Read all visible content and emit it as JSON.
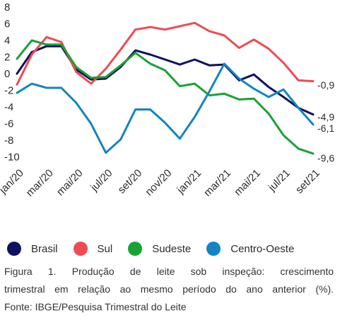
{
  "chart_data": {
    "type": "line",
    "categories": [
      "jan/20",
      "fev/20",
      "mar/20",
      "abr/20",
      "mai/20",
      "jun/20",
      "jul/20",
      "ago/20",
      "set/20",
      "out/20",
      "nov/20",
      "dez/20",
      "jan/21",
      "fev/21",
      "mar/21",
      "abr/21",
      "mai/21",
      "jun/21",
      "jul/21",
      "ago/21",
      "set/21"
    ],
    "x_tick_labels": [
      "jan/20",
      "mar/20",
      "mai/20",
      "jul/20",
      "set/20",
      "nov/20",
      "jan/21",
      "mar/21",
      "mai/21",
      "jul/21",
      "set/21"
    ],
    "y_ticks": [
      8,
      6,
      4,
      2,
      0,
      -2,
      -4,
      -6,
      -8,
      -10
    ],
    "y_tick_labels": [
      "8",
      "6",
      "4",
      "2",
      "0",
      "-2",
      "-4",
      "-6",
      "-8",
      "-10"
    ],
    "ylim": [
      -10.8,
      8.4
    ],
    "grid": false,
    "legend_position": "bottom",
    "series": [
      {
        "name": "Brasil",
        "color": "#0f1160",
        "values": [
          0.0,
          2.6,
          3.3,
          3.3,
          0.5,
          -0.7,
          -0.6,
          0.8,
          2.8,
          2.3,
          1.7,
          1.1,
          1.7,
          1.0,
          1.1,
          -0.8,
          -0.1,
          -1.6,
          -2.8,
          -4.1,
          -4.9
        ]
      },
      {
        "name": "Sul",
        "color": "#ee4b52",
        "values": [
          -1.3,
          2.3,
          4.4,
          3.8,
          0.2,
          -1.2,
          0.6,
          2.9,
          5.3,
          5.6,
          5.3,
          5.7,
          6.1,
          5.1,
          4.6,
          3.1,
          4.1,
          3.0,
          1.3,
          -0.8,
          -0.9
        ]
      },
      {
        "name": "Sudeste",
        "color": "#1aa136",
        "values": [
          1.8,
          4.0,
          3.5,
          3.5,
          0.8,
          -0.5,
          -0.4,
          1.0,
          2.5,
          1.2,
          0.4,
          -1.5,
          -1.2,
          -2.6,
          -2.4,
          -3.1,
          -3.0,
          -4.8,
          -7.4,
          -9.0,
          -9.6
        ]
      },
      {
        "name": "Centro-Oeste",
        "color": "#1384c5",
        "values": [
          -2.3,
          -1.2,
          -1.7,
          -1.7,
          -3.5,
          -6.0,
          -9.5,
          -7.9,
          -4.3,
          -4.3,
          -5.9,
          -7.8,
          -5.2,
          -2.1,
          1.2,
          -0.6,
          -1.8,
          -2.8,
          -1.9,
          -4.1,
          -6.1
        ]
      }
    ],
    "end_labels": [
      "-0,9",
      "-4,9",
      "-6,1",
      "-9,6"
    ]
  },
  "legend": [
    {
      "label": "Brasil",
      "color": "#0f1160"
    },
    {
      "label": "Sul",
      "color": "#ee4b52"
    },
    {
      "label": "Sudeste",
      "color": "#1aa136"
    },
    {
      "label": "Centro-Oeste",
      "color": "#1384c5"
    }
  ],
  "caption": {
    "line1": "Figura 1. Produção de leite sob inspeção: crescimento",
    "line2": "trimestral em relação ao mesmo período do ano anterior (%).",
    "line3": "Fonte: IBGE/Pesquisa Trimestral do Leite"
  }
}
